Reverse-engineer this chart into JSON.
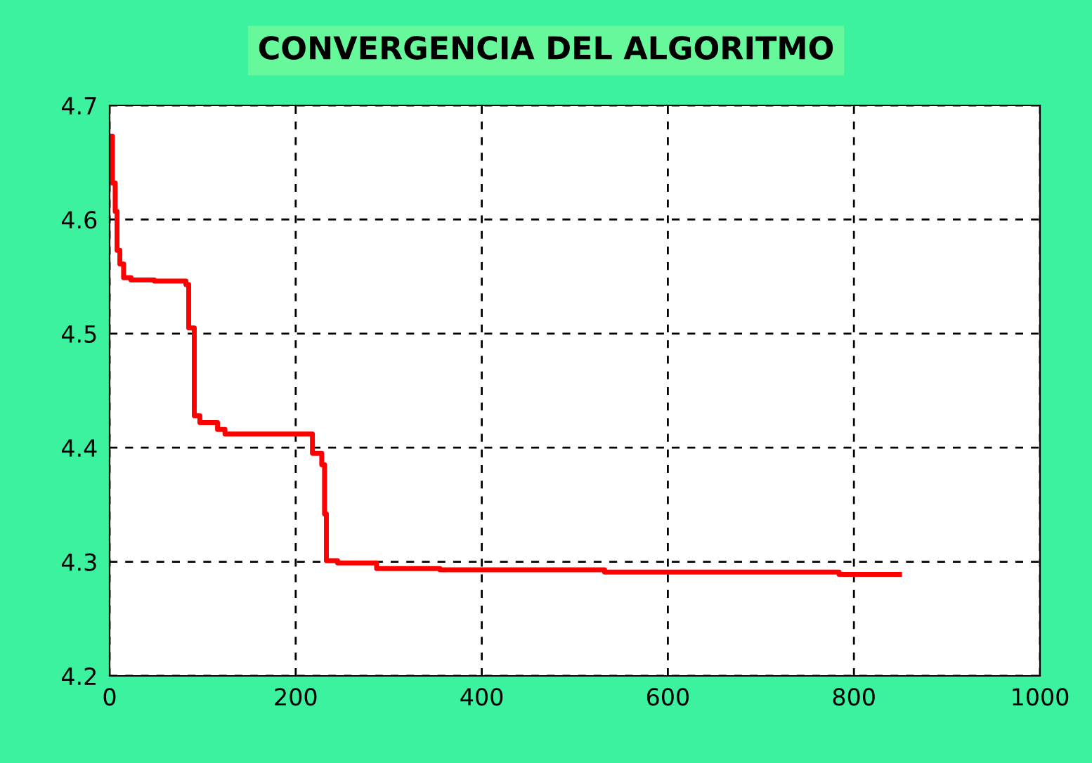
{
  "chart_data": {
    "type": "step",
    "title": "CONVERGENCIA DEL ALGORITMO",
    "x": [
      0,
      3,
      6,
      8,
      11,
      15,
      23,
      48,
      82,
      85,
      91,
      97,
      116,
      124,
      214,
      218,
      228,
      231,
      233,
      245,
      287,
      355,
      532,
      784,
      849
    ],
    "series": [
      {
        "color": "#ff0000",
        "values": [
          4.673,
          4.632,
          4.607,
          4.573,
          4.561,
          4.549,
          4.547,
          4.546,
          4.543,
          4.505,
          4.428,
          4.422,
          4.416,
          4.412,
          4.412,
          4.395,
          4.385,
          4.342,
          4.301,
          4.299,
          4.294,
          4.293,
          4.291,
          4.289,
          4.289
        ]
      }
    ],
    "xlim": [
      0,
      1000
    ],
    "ylim": [
      4.2,
      4.7
    ],
    "xticks": [
      0,
      200,
      400,
      600,
      800,
      1000
    ],
    "yticks": [
      4.2,
      4.3,
      4.4,
      4.5,
      4.6,
      4.7
    ],
    "grid": true,
    "line_style": "solid"
  }
}
